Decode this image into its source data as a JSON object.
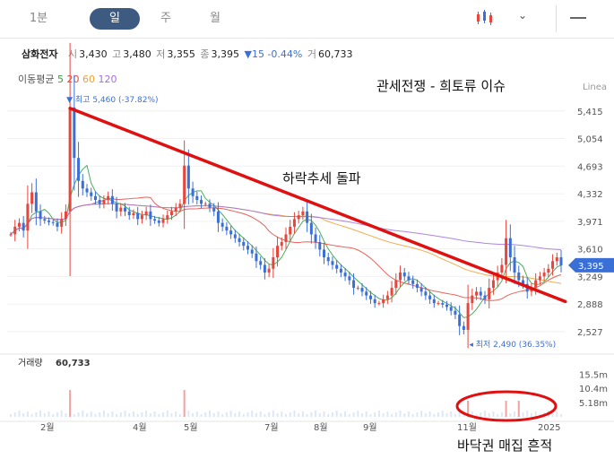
{
  "toolbar": {
    "tabs": [
      {
        "label": "1분",
        "active": false
      },
      {
        "label": "일",
        "active": true
      },
      {
        "label": "주",
        "active": false
      },
      {
        "label": "월",
        "active": false
      }
    ],
    "icons": [
      "candlestick-chart-icon",
      "chevron-down-icon",
      "menu-icon"
    ],
    "accent_color": "#3d5a80"
  },
  "stock": {
    "name": "삼화전자",
    "open_label": "시",
    "open": "3,430",
    "high_label": "고",
    "high": "3,480",
    "low_label": "저",
    "low": "3,355",
    "close_label": "종",
    "close": "3,395",
    "change": "▼15 -0.44%",
    "volume_label": "거",
    "volume": "60,733"
  },
  "moving_average": {
    "label": "이동평균",
    "periods": [
      {
        "value": "5",
        "color": "#2e9e3e"
      },
      {
        "value": "20",
        "color": "#e8453c"
      },
      {
        "value": "60",
        "color": "#f0a030"
      },
      {
        "value": "120",
        "color": "#a070e0"
      }
    ]
  },
  "scale_label": "Linea",
  "annotations": {
    "top": "관세전쟁 - 희토류 이슈",
    "middle": "하락추세 돌파",
    "bottom": "바닥권 매집 흔적"
  },
  "chart_data": {
    "type": "candlestick",
    "y_ticks": [
      "5,415",
      "5,054",
      "4,693",
      "4,332",
      "3,971",
      "3,610",
      "3,249",
      "2,888",
      "2,527"
    ],
    "ylim": [
      2350,
      5600
    ],
    "current_price_label": "3,395",
    "high_marker": "최고 5,460 (-37.82%)",
    "low_marker": "최저 2,490 (36.35%)",
    "x_ticks": [
      "2월",
      "4월",
      "5월",
      "7월",
      "8월",
      "9월",
      "11월",
      "2025"
    ],
    "volume_label": "거래량",
    "volume_value": "60,733",
    "volume_ticks": [
      "15.5m",
      "10.4m",
      "5.18m"
    ],
    "price_series": [
      3800,
      3900,
      3950,
      3850,
      4200,
      4350,
      4100,
      4000,
      3980,
      3960,
      3950,
      3900,
      4000,
      4100,
      5460,
      4800,
      4500,
      4400,
      4350,
      4300,
      4250,
      4200,
      4250,
      4300,
      4200,
      4100,
      4150,
      4100,
      4050,
      4080,
      4000,
      4050,
      4100,
      4000,
      3980,
      3950,
      4000,
      4050,
      4100,
      4150,
      4200,
      4700,
      4400,
      4300,
      4250,
      4200,
      4200,
      4150,
      4100,
      3950,
      3900,
      3850,
      3800,
      3750,
      3700,
      3650,
      3600,
      3550,
      3450,
      3400,
      3300,
      3350,
      3500,
      3650,
      3700,
      3800,
      3900,
      4000,
      4050,
      4100,
      3950,
      3800,
      3700,
      3600,
      3500,
      3450,
      3400,
      3350,
      3300,
      3250,
      3200,
      3100,
      3100,
      3050,
      3000,
      2950,
      2900,
      2900,
      2950,
      3000,
      3100,
      3200,
      3300,
      3250,
      3200,
      3150,
      3100,
      3050,
      3000,
      2950,
      2900,
      2900,
      2880,
      2850,
      2800,
      2750,
      2600,
      2550,
      2900,
      3000,
      3050,
      3000,
      2950,
      3100,
      3200,
      3300,
      3400,
      3750,
      3500,
      3300,
      3200,
      3150,
      3050,
      3100,
      3200,
      3250,
      3300,
      3350,
      3450,
      3500,
      3395
    ],
    "trendline": {
      "from": [
        14,
        5450
      ],
      "to": [
        131,
        2920
      ]
    }
  }
}
